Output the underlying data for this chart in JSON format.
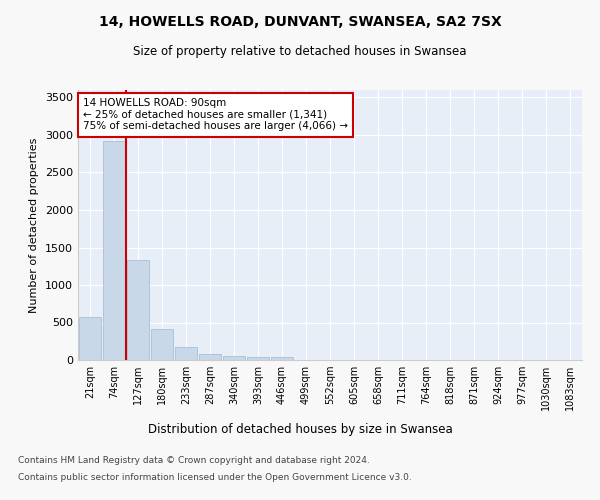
{
  "title1": "14, HOWELLS ROAD, DUNVANT, SWANSEA, SA2 7SX",
  "title2": "Size of property relative to detached houses in Swansea",
  "xlabel": "Distribution of detached houses by size in Swansea",
  "ylabel": "Number of detached properties",
  "footer1": "Contains HM Land Registry data © Crown copyright and database right 2024.",
  "footer2": "Contains public sector information licensed under the Open Government Licence v3.0.",
  "annotation_line1": "14 HOWELLS ROAD: 90sqm",
  "annotation_line2": "← 25% of detached houses are smaller (1,341)",
  "annotation_line3": "75% of semi-detached houses are larger (4,066) →",
  "bar_labels": [
    "21sqm",
    "74sqm",
    "127sqm",
    "180sqm",
    "233sqm",
    "287sqm",
    "340sqm",
    "393sqm",
    "446sqm",
    "499sqm",
    "552sqm",
    "605sqm",
    "658sqm",
    "711sqm",
    "764sqm",
    "818sqm",
    "871sqm",
    "924sqm",
    "977sqm",
    "1030sqm",
    "1083sqm"
  ],
  "bar_values": [
    570,
    2920,
    1330,
    415,
    170,
    80,
    55,
    45,
    40,
    0,
    0,
    0,
    0,
    0,
    0,
    0,
    0,
    0,
    0,
    0,
    0
  ],
  "bar_color": "#c8d8e8",
  "bar_edge_color": "#a0b8d0",
  "vline_x": 1.5,
  "vline_color": "#cc0000",
  "ylim": [
    0,
    3600
  ],
  "yticks": [
    0,
    500,
    1000,
    1500,
    2000,
    2500,
    3000,
    3500
  ],
  "background_color": "#e8eef8",
  "grid_color": "#ffffff",
  "fig_background": "#f8f8f8",
  "annotation_box_color": "#ffffff",
  "annotation_box_edge": "#cc0000"
}
